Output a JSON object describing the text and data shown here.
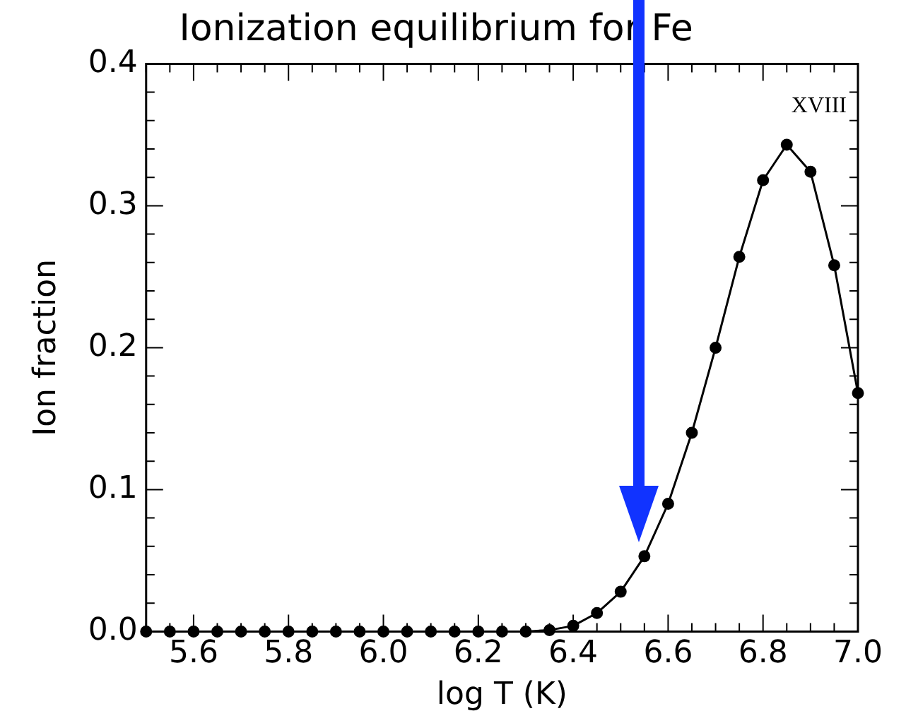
{
  "chart_data": {
    "type": "line",
    "title": "Ionization equilibrium for Fe",
    "xlabel": "log T (K)",
    "ylabel": "Ion fraction",
    "x": [
      5.5,
      5.55,
      5.6,
      5.65,
      5.7,
      5.75,
      5.8,
      5.85,
      5.9,
      5.95,
      6.0,
      6.05,
      6.1,
      6.15,
      6.2,
      6.25,
      6.3,
      6.35,
      6.4,
      6.45,
      6.5,
      6.55,
      6.6,
      6.65,
      6.7,
      6.75,
      6.8,
      6.85,
      6.9,
      6.95,
      7.0
    ],
    "series": [
      {
        "color": "#000000",
        "values": [
          0,
          0,
          0,
          0,
          0,
          0,
          0,
          0,
          0,
          0,
          0,
          0,
          0,
          0,
          0,
          0,
          0,
          0.001,
          0.004,
          0.013,
          0.028,
          0.053,
          0.09,
          0.14,
          0.2,
          0.264,
          0.318,
          0.343,
          0.324,
          0.258,
          0.168
        ]
      }
    ],
    "xlim": [
      5.5,
      7.0
    ],
    "ylim": [
      0,
      0.4
    ],
    "xticks": [
      5.6,
      5.8,
      {
        "value": 6,
        "label": "6.0"
      },
      6.2,
      6.4,
      6.6,
      6.8,
      {
        "value": 7,
        "label": "7.0"
      }
    ],
    "yticks": [
      {
        "value": 0,
        "label": "0.0"
      },
      0.1,
      0.2,
      0.3,
      0.4
    ],
    "annotations": [
      "XVIII"
    ],
    "grid": false,
    "legend": false,
    "marker": "circle",
    "line_style": "solid"
  }
}
